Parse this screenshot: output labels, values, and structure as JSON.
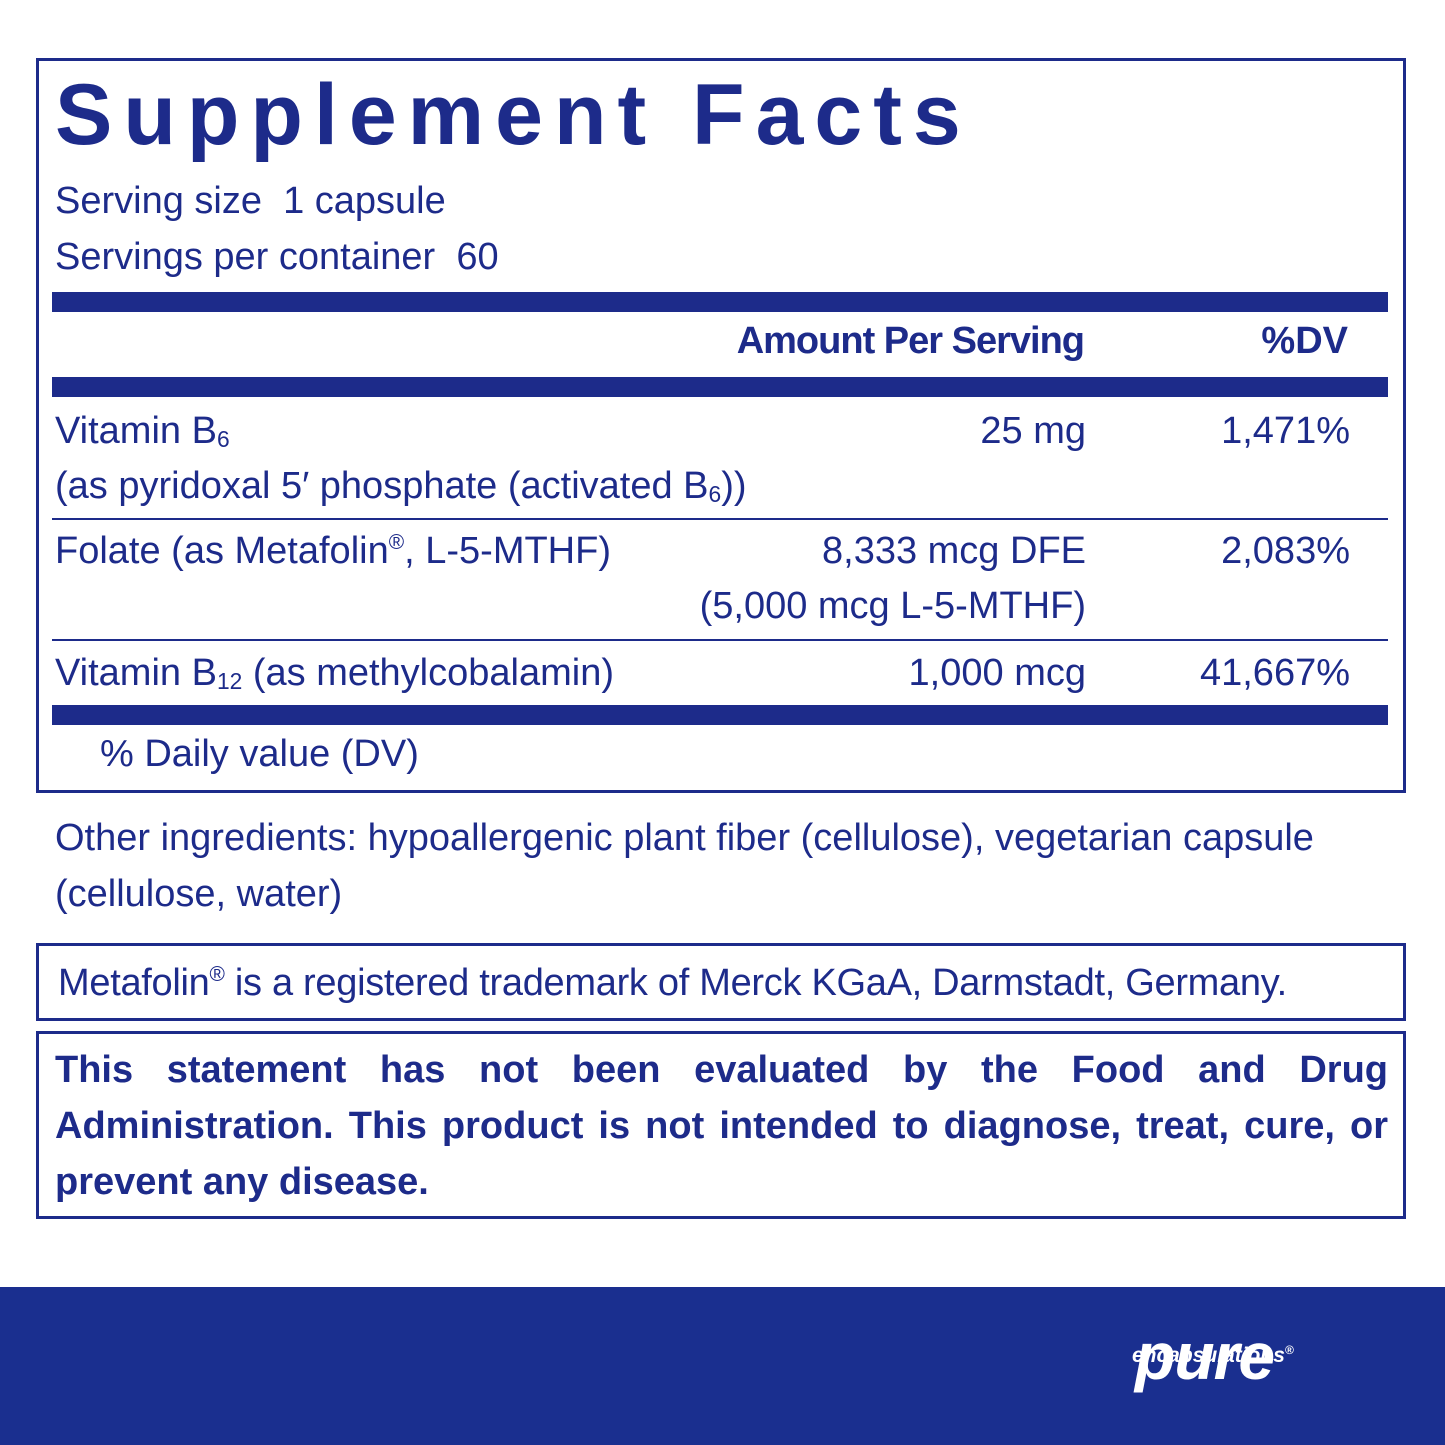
{
  "label": {
    "title": "Supplement Facts",
    "serving_size": "Serving size  1 capsule",
    "servings_per_container": "Servings per container  60",
    "header": {
      "amount": "Amount Per Serving",
      "dv": "%DV"
    },
    "rows": [
      {
        "name": [
          "Vitamin B",
          "6"
        ],
        "detail": [
          "(as pyridoxal 5′ phosphate (activated B",
          "6",
          "))"
        ],
        "amount": [
          "25 mg"
        ],
        "dv": "1,471%"
      },
      {
        "name": [
          "Folate (as Metafolin",
          "®",
          ", L-5-MTHF)"
        ],
        "amount": [
          "8,333 mcg DFE",
          "(5,000 mcg L-5-MTHF)"
        ],
        "dv": "2,083%"
      },
      {
        "name": [
          "Vitamin B",
          "12",
          " (as methylcobalamin)"
        ],
        "amount": [
          "1,000 mcg"
        ],
        "dv": "41,667%"
      }
    ],
    "footnote": "% Daily value (DV)"
  },
  "other_ingredients": "Other ingredients: hypoallergenic plant fiber (cellulose), vegetarian capsule (cellulose, water)",
  "trademark": [
    "Metafolin",
    "®",
    " is a registered trademark of Merck KGaA, Darmstadt, Germany."
  ],
  "disclaimer": "This statement has not been evaluated by the Food and Drug Administration. This product is not intended to diagnose, treat, cure, or prevent any disease.",
  "logo": {
    "name": "pure",
    "tagline": "encapsulations",
    "mark": "®"
  }
}
